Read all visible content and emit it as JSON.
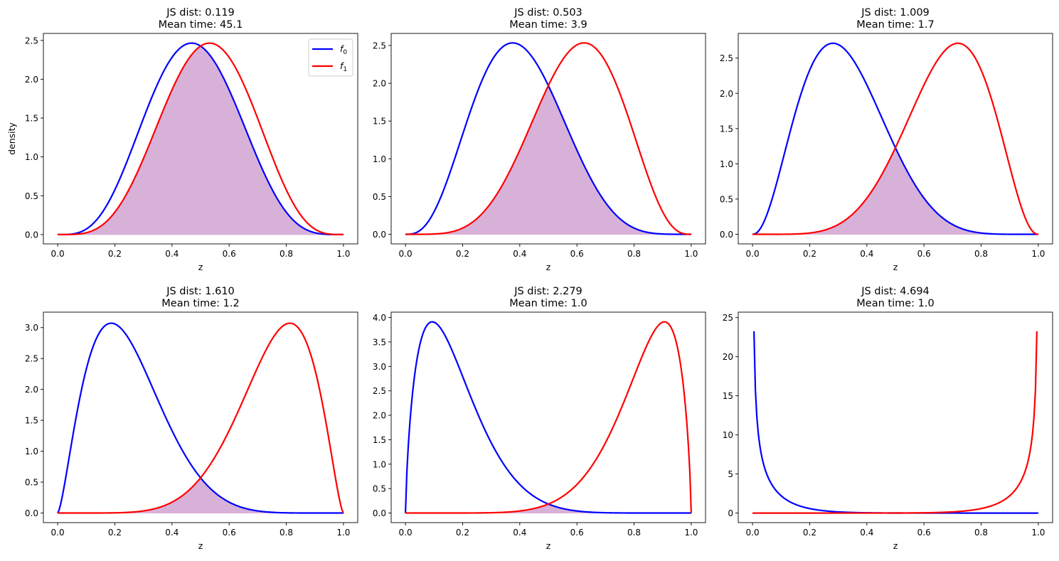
{
  "colors": {
    "f0": "#0000ff",
    "f1": "#ff0000",
    "overlap_fill": "#d8b1d8"
  },
  "legend": {
    "placement": "top-right",
    "panel": 0,
    "entries": [
      {
        "series": "f0",
        "label": "f",
        "sub": "0"
      },
      {
        "series": "f1",
        "label": "f",
        "sub": "1"
      }
    ]
  },
  "chart_data": [
    {
      "type": "line",
      "title": [
        "JS dist: 0.119",
        "Mean time: 45.1"
      ],
      "xlabel": "z",
      "ylabel": "density",
      "xlim": [
        -0.05,
        1.05
      ],
      "ylim": [
        -0.12,
        2.59
      ],
      "xticks": [
        "0.0",
        "0.2",
        "0.4",
        "0.6",
        "0.8",
        "1.0"
      ],
      "yticks": [
        "0.0",
        "0.5",
        "1.0",
        "1.5",
        "2.0",
        "2.5"
      ],
      "series": [
        {
          "name": "f0",
          "distribution": "beta",
          "a": 4.75,
          "b": 5.25
        },
        {
          "name": "f1",
          "distribution": "beta",
          "a": 5.25,
          "b": 4.75
        }
      ],
      "overlap_shaded": true
    },
    {
      "type": "line",
      "title": [
        "JS dist: 0.503",
        "Mean time: 3.9"
      ],
      "xlabel": "z",
      "ylabel": "",
      "xlim": [
        -0.05,
        1.05
      ],
      "ylim": [
        -0.127,
        2.66
      ],
      "xticks": [
        "0.0",
        "0.2",
        "0.4",
        "0.6",
        "0.8",
        "1.0"
      ],
      "yticks": [
        "0.0",
        "0.5",
        "1.0",
        "1.5",
        "2.0",
        "2.5"
      ],
      "series": [
        {
          "name": "f0",
          "distribution": "beta",
          "a": 4,
          "b": 6
        },
        {
          "name": "f1",
          "distribution": "beta",
          "a": 6,
          "b": 4
        }
      ],
      "overlap_shaded": true
    },
    {
      "type": "line",
      "title": [
        "JS dist: 1.009",
        "Mean time: 1.7"
      ],
      "xlabel": "z",
      "ylabel": "",
      "xlim": [
        -0.05,
        1.05
      ],
      "ylim": [
        -0.136,
        2.85
      ],
      "xticks": [
        "0.0",
        "0.2",
        "0.4",
        "0.6",
        "0.8",
        "1.0"
      ],
      "yticks": [
        "0.0",
        "0.5",
        "1.0",
        "1.5",
        "2.0",
        "2.5"
      ],
      "series": [
        {
          "name": "f0",
          "distribution": "beta",
          "a": 3.25,
          "b": 6.75
        },
        {
          "name": "f1",
          "distribution": "beta",
          "a": 6.75,
          "b": 3.25
        }
      ],
      "overlap_shaded": true
    },
    {
      "type": "line",
      "title": [
        "JS dist: 1.610",
        "Mean time: 1.2"
      ],
      "xlabel": "z",
      "ylabel": "",
      "xlim": [
        -0.05,
        1.05
      ],
      "ylim": [
        -0.155,
        3.25
      ],
      "xticks": [
        "0.0",
        "0.2",
        "0.4",
        "0.6",
        "0.8",
        "1.0"
      ],
      "yticks": [
        "0.0",
        "0.5",
        "1.0",
        "1.5",
        "2.0",
        "2.5",
        "3.0"
      ],
      "series": [
        {
          "name": "f0",
          "distribution": "beta",
          "a": 2.5,
          "b": 7.5
        },
        {
          "name": "f1",
          "distribution": "beta",
          "a": 7.5,
          "b": 2.5
        }
      ],
      "overlap_shaded": true
    },
    {
      "type": "line",
      "title": [
        "JS dist: 2.279",
        "Mean time: 1.0"
      ],
      "xlabel": "z",
      "ylabel": "",
      "xlim": [
        -0.05,
        1.05
      ],
      "ylim": [
        -0.196,
        4.11
      ],
      "xticks": [
        "0.0",
        "0.2",
        "0.4",
        "0.6",
        "0.8",
        "1.0"
      ],
      "yticks": [
        "0.0",
        "0.5",
        "1.0",
        "1.5",
        "2.0",
        "2.5",
        "3.0",
        "3.5",
        "4.0"
      ],
      "series": [
        {
          "name": "f0",
          "distribution": "beta",
          "a": 1.75,
          "b": 8.25
        },
        {
          "name": "f1",
          "distribution": "beta",
          "a": 8.25,
          "b": 1.75
        }
      ],
      "overlap_shaded": true
    },
    {
      "type": "line",
      "title": [
        "JS dist: 4.694",
        "Mean time: 1.0"
      ],
      "xlabel": "z",
      "ylabel": "",
      "xlim": [
        -0.05,
        1.05
      ],
      "ylim": [
        -1.22,
        25.7
      ],
      "xticks": [
        "0.0",
        "0.2",
        "0.4",
        "0.6",
        "0.8",
        "1.0"
      ],
      "yticks": [
        "0",
        "5",
        "10",
        "15",
        "20",
        "25"
      ],
      "series": [
        {
          "name": "f0",
          "distribution": "beta",
          "a": 0.5,
          "b": 9.5
        },
        {
          "name": "f1",
          "distribution": "beta",
          "a": 9.5,
          "b": 0.5
        }
      ],
      "overlap_shaded": true
    }
  ]
}
